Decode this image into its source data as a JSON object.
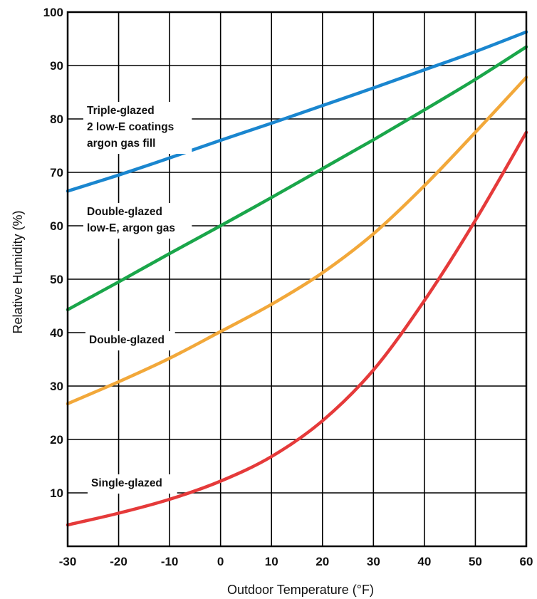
{
  "chart_data": {
    "type": "line",
    "xlabel": "Outdoor Temperature (°F)",
    "ylabel": "Relative Humidity (%)",
    "xlim": [
      -30,
      60
    ],
    "ylim": [
      0,
      100
    ],
    "x_ticks": [
      -30,
      -20,
      -10,
      0,
      10,
      20,
      30,
      40,
      50,
      60
    ],
    "y_ticks": [
      10,
      20,
      30,
      40,
      50,
      60,
      70,
      80,
      90,
      100
    ],
    "grid": true,
    "series": [
      {
        "name": "Triple-glazed 2 low-E coatings argon gas fill",
        "label_lines": [
          "Triple-glazed",
          "2 low-E coatings",
          "argon gas fill"
        ],
        "color": "#1a86cf",
        "x": [
          -30,
          -20,
          -10,
          0,
          10,
          20,
          30,
          40,
          50,
          60
        ],
        "y": [
          66.5,
          69.5,
          72.7,
          76,
          79.2,
          82.5,
          85.8,
          89.2,
          92.6,
          96.3
        ]
      },
      {
        "name": "Double-glazed low-E, argon gas",
        "label_lines": [
          "Double-glazed",
          "low-E, argon gas"
        ],
        "color": "#1aa64a",
        "x": [
          -30,
          -20,
          -10,
          0,
          10,
          20,
          30,
          40,
          50,
          60
        ],
        "y": [
          44.3,
          49.5,
          54.8,
          60,
          65.3,
          70.7,
          76.1,
          81.7,
          87.4,
          93.5
        ]
      },
      {
        "name": "Double-glazed",
        "label_lines": [
          "Double-glazed"
        ],
        "color": "#f2a83a",
        "x": [
          -30,
          -20,
          -10,
          0,
          10,
          20,
          30,
          40,
          50,
          60
        ],
        "y": [
          26.7,
          30.8,
          35.2,
          40.2,
          45.3,
          51.2,
          58.5,
          67.5,
          77.5,
          87.8
        ]
      },
      {
        "name": "Single-glazed",
        "label_lines": [
          "Single-glazed"
        ],
        "color": "#e53a3a",
        "x": [
          -30,
          -20,
          -10,
          0,
          10,
          20,
          30,
          40,
          50,
          60
        ],
        "y": [
          4,
          6.2,
          8.8,
          12.2,
          16.8,
          23.5,
          33,
          46,
          61,
          77.5
        ]
      }
    ]
  }
}
